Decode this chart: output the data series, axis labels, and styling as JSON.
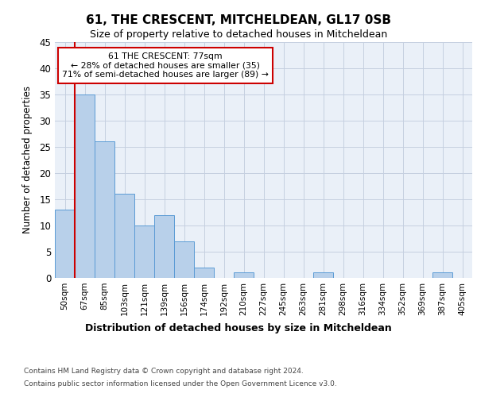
{
  "title1": "61, THE CRESCENT, MITCHELDEAN, GL17 0SB",
  "title2": "Size of property relative to detached houses in Mitcheldean",
  "xlabel": "Distribution of detached houses by size in Mitcheldean",
  "ylabel": "Number of detached properties",
  "categories": [
    "50sqm",
    "67sqm",
    "85sqm",
    "103sqm",
    "121sqm",
    "139sqm",
    "156sqm",
    "174sqm",
    "192sqm",
    "210sqm",
    "227sqm",
    "245sqm",
    "263sqm",
    "281sqm",
    "298sqm",
    "316sqm",
    "334sqm",
    "352sqm",
    "369sqm",
    "387sqm",
    "405sqm"
  ],
  "values": [
    13,
    35,
    26,
    16,
    10,
    12,
    7,
    2,
    0,
    1,
    0,
    0,
    0,
    1,
    0,
    0,
    0,
    0,
    0,
    1,
    0
  ],
  "bar_color": "#b8d0ea",
  "bar_edgecolor": "#5b9bd5",
  "ylim": [
    0,
    45
  ],
  "yticks": [
    0,
    5,
    10,
    15,
    20,
    25,
    30,
    35,
    40,
    45
  ],
  "vline_bar_index": 1,
  "vline_color": "#cc0000",
  "annotation_line1": "61 THE CRESCENT: 77sqm",
  "annotation_line2": "← 28% of detached houses are smaller (35)",
  "annotation_line3": "71% of semi-detached houses are larger (89) →",
  "annotation_box_edgecolor": "#cc0000",
  "footnote1": "Contains HM Land Registry data © Crown copyright and database right 2024.",
  "footnote2": "Contains public sector information licensed under the Open Government Licence v3.0.",
  "plot_bg_color": "#eaf0f8",
  "grid_color": "#c5cfe0",
  "title1_fontsize": 11,
  "title2_fontsize": 9
}
